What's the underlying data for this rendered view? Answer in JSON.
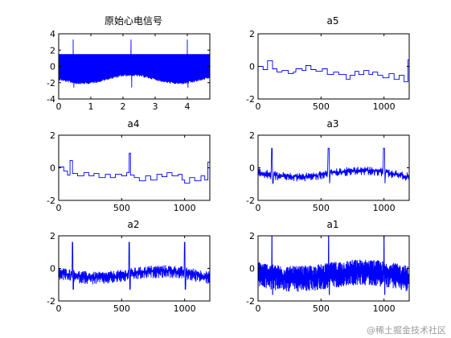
{
  "watermark": "@稀土掘金技术社区",
  "chart_data": [
    {
      "type": "line",
      "id": "orig",
      "title": "原始心电信号",
      "xlim": [
        0,
        4.7
      ],
      "ylim": [
        -4,
        4
      ],
      "xticks": [
        0,
        1,
        2,
        3,
        4
      ],
      "yticks": [
        -4,
        -2,
        0,
        2,
        4
      ],
      "color": "#0000ff",
      "band": {
        "top": 1.5,
        "bottom_base": -1.4
      },
      "spikes": [
        0.45,
        2.25,
        4.0
      ],
      "spike_peak": 3.3,
      "spike_trough": -2.6
    },
    {
      "type": "line",
      "id": "a5",
      "title": "a5",
      "xlim": [
        0,
        1200
      ],
      "ylim": [
        -2,
        2
      ],
      "xticks": [
        0,
        500,
        1000
      ],
      "yticks": [
        -2,
        0,
        2
      ],
      "color": "#0000ff",
      "steps": [
        [
          0,
          0.0
        ],
        [
          40,
          -0.2
        ],
        [
          75,
          0.35
        ],
        [
          115,
          -0.15
        ],
        [
          150,
          -0.35
        ],
        [
          190,
          -0.25
        ],
        [
          240,
          -0.45
        ],
        [
          280,
          -0.35
        ],
        [
          300,
          -0.15
        ],
        [
          350,
          -0.25
        ],
        [
          380,
          0.05
        ],
        [
          420,
          -0.2
        ],
        [
          460,
          -0.3
        ],
        [
          510,
          -0.15
        ],
        [
          550,
          -0.5
        ],
        [
          600,
          -0.35
        ],
        [
          640,
          -0.5
        ],
        [
          700,
          -0.8
        ],
        [
          730,
          -0.55
        ],
        [
          770,
          -0.3
        ],
        [
          800,
          -0.5
        ],
        [
          840,
          -0.25
        ],
        [
          880,
          -0.5
        ],
        [
          910,
          -0.35
        ],
        [
          950,
          -0.55
        ],
        [
          990,
          -0.7
        ],
        [
          1040,
          -0.45
        ],
        [
          1080,
          -0.8
        ],
        [
          1120,
          -0.55
        ],
        [
          1160,
          -0.95
        ],
        [
          1190,
          0.4
        ],
        [
          1200,
          0.4
        ]
      ]
    },
    {
      "type": "line",
      "id": "a4",
      "title": "a4",
      "xlim": [
        0,
        1200
      ],
      "ylim": [
        -2,
        2
      ],
      "xticks": [
        0,
        500,
        1000
      ],
      "yticks": [
        -2,
        0,
        2
      ],
      "color": "#0000ff",
      "steps": [
        [
          0,
          0.05
        ],
        [
          40,
          -0.2
        ],
        [
          70,
          -0.45
        ],
        [
          90,
          0.45
        ],
        [
          110,
          -0.35
        ],
        [
          150,
          -0.5
        ],
        [
          200,
          -0.3
        ],
        [
          240,
          -0.5
        ],
        [
          280,
          -0.35
        ],
        [
          320,
          -0.6
        ],
        [
          370,
          -0.4
        ],
        [
          410,
          -0.6
        ],
        [
          450,
          -0.4
        ],
        [
          500,
          -0.5
        ],
        [
          540,
          -0.3
        ],
        [
          560,
          0.9
        ],
        [
          570,
          -0.45
        ],
        [
          600,
          -0.6
        ],
        [
          640,
          -0.8
        ],
        [
          690,
          -0.5
        ],
        [
          730,
          -0.75
        ],
        [
          780,
          -0.4
        ],
        [
          820,
          -0.55
        ],
        [
          860,
          -0.3
        ],
        [
          900,
          -0.5
        ],
        [
          950,
          -0.4
        ],
        [
          980,
          -0.75
        ],
        [
          1000,
          -0.95
        ],
        [
          1040,
          -0.6
        ],
        [
          1080,
          -0.8
        ],
        [
          1130,
          -0.5
        ],
        [
          1160,
          -0.75
        ],
        [
          1185,
          0.35
        ],
        [
          1200,
          0.35
        ]
      ]
    },
    {
      "type": "line",
      "id": "a3",
      "title": "a3",
      "xlim": [
        0,
        1200
      ],
      "ylim": [
        -2,
        2
      ],
      "xticks": [
        0,
        500,
        1000
      ],
      "yticks": [
        -2,
        0,
        2
      ],
      "color": "#0000ff",
      "base_noise": 0.35,
      "spikes": [
        110,
        560,
        1000
      ],
      "spike_peak": 1.2
    },
    {
      "type": "line",
      "id": "a2",
      "title": "a2",
      "xlim": [
        0,
        1200
      ],
      "ylim": [
        -2,
        2
      ],
      "xticks": [
        0,
        500,
        1000
      ],
      "yticks": [
        -2,
        0,
        2
      ],
      "color": "#0000ff",
      "base_noise": 0.5,
      "spikes": [
        110,
        560,
        1000
      ],
      "spike_peak": 1.6
    },
    {
      "type": "line",
      "id": "a1",
      "title": "a1",
      "xlim": [
        0,
        1200
      ],
      "ylim": [
        -2,
        2
      ],
      "xticks": [
        0,
        500,
        1000
      ],
      "yticks": [
        -2,
        0,
        2
      ],
      "color": "#0000ff",
      "base_noise": 1.0,
      "spikes": [
        110,
        560,
        1000
      ],
      "spike_peak": 2.0
    }
  ]
}
